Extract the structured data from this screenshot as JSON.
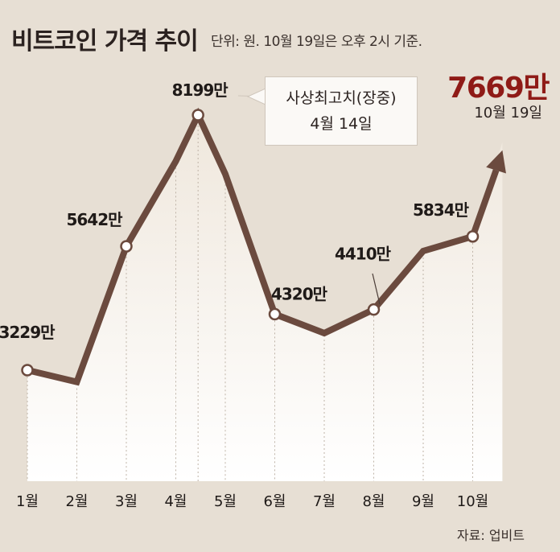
{
  "header": {
    "title": "비트코인 가격 추이",
    "unit_note": "단위: 원. 10월 19일은 오후 2시 기준."
  },
  "source": "자료: 업비트",
  "colors": {
    "line": "#6b4a3e",
    "background": "#e7dfd4",
    "highlight": "#8f1b17"
  },
  "callout": {
    "line1": "사상최고치(장중)",
    "line2": "4월 14일"
  },
  "latest": {
    "value_label": "7669만",
    "date_label": "10월 19일"
  },
  "chart_data": {
    "type": "line",
    "categories": [
      "1월",
      "2월",
      "3월",
      "4월",
      "5월",
      "6월",
      "7월",
      "8월",
      "9월",
      "10월"
    ],
    "unit": "원",
    "points": [
      {
        "x": 1.0,
        "y": 3229,
        "label": "3229만",
        "marker": true
      },
      {
        "x": 2.0,
        "y": 3000,
        "label": "",
        "marker": false
      },
      {
        "x": 3.0,
        "y": 5642,
        "label": "5642만",
        "marker": true
      },
      {
        "x": 4.0,
        "y": 7300,
        "label": "",
        "marker": false
      },
      {
        "x": 4.45,
        "y": 8199,
        "label": "8199만",
        "marker": true
      },
      {
        "x": 5.0,
        "y": 7050,
        "label": "",
        "marker": false
      },
      {
        "x": 6.0,
        "y": 4320,
        "label": "4320만",
        "marker": true
      },
      {
        "x": 7.0,
        "y": 3950,
        "label": "",
        "marker": false
      },
      {
        "x": 8.0,
        "y": 4410,
        "label": "4410만",
        "marker": true
      },
      {
        "x": 9.0,
        "y": 5550,
        "label": "",
        "marker": false
      },
      {
        "x": 10.0,
        "y": 5834,
        "label": "5834만",
        "marker": true
      },
      {
        "x": 10.6,
        "y": 7669,
        "label": "",
        "marker": false
      }
    ],
    "ylim": [
      2600,
      8600
    ],
    "grid": false,
    "legend": "none"
  }
}
